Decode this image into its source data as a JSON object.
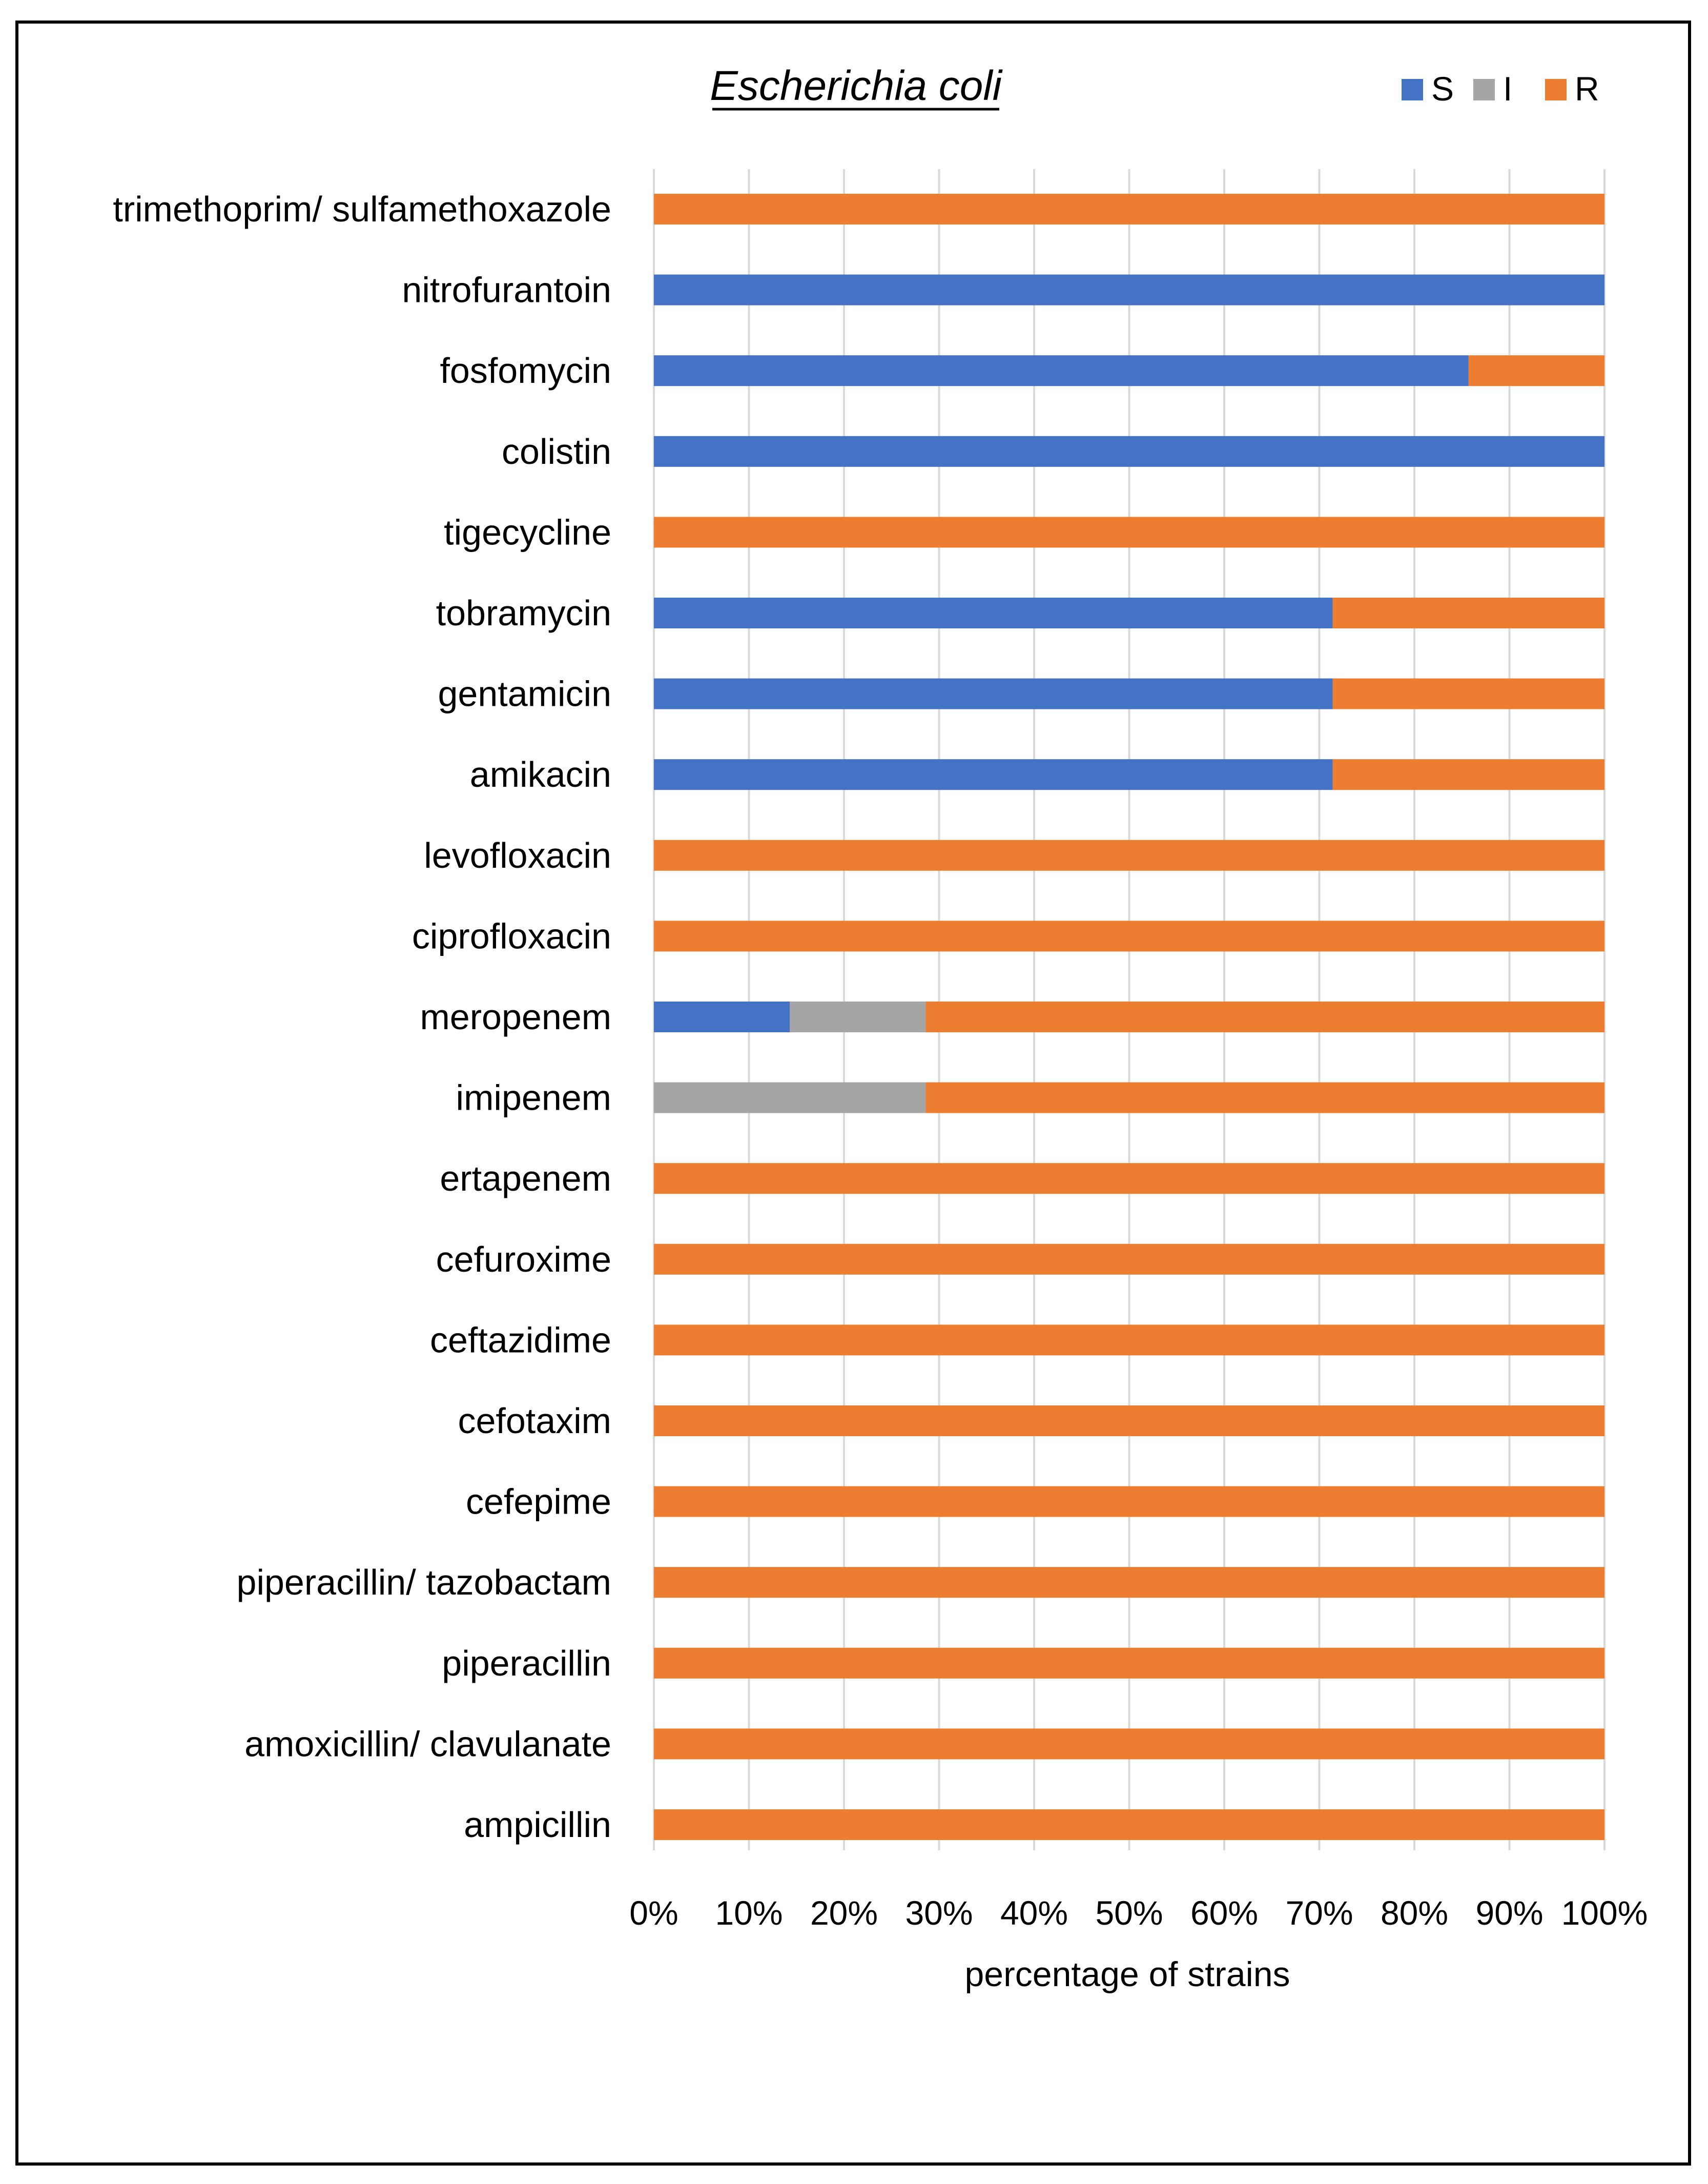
{
  "chart_data": {
    "type": "bar",
    "orientation": "horizontal",
    "stacked": true,
    "title": "Escherichia coli",
    "xlabel": "percentage of strains",
    "ylabel": "",
    "xlim": [
      0,
      100
    ],
    "xticks": [
      "0%",
      "10%",
      "20%",
      "30%",
      "40%",
      "50%",
      "60%",
      "70%",
      "80%",
      "90%",
      "100%"
    ],
    "grid": true,
    "legend_position": "top-right",
    "categories": [
      "trimethoprim/ sulfamethoxazole",
      "nitrofurantoin",
      "fosfomycin",
      "colistin",
      "tigecycline",
      "tobramycin",
      "gentamicin",
      "amikacin",
      "levofloxacin",
      "ciprofloxacin",
      "meropenem",
      "imipenem",
      "ertapenem",
      "cefuroxime",
      "ceftazidime",
      "cefotaxim",
      "cefepime",
      "piperacillin/ tazobactam",
      "piperacillin",
      "amoxicillin/ clavulanate",
      "ampicillin"
    ],
    "series": [
      {
        "name": "S",
        "color": "#4472C4",
        "values": [
          0,
          100,
          85.7,
          100,
          0,
          71.4,
          71.4,
          71.4,
          0,
          0,
          14.3,
          0,
          0,
          0,
          0,
          0,
          0,
          0,
          0,
          0,
          0
        ]
      },
      {
        "name": "I",
        "color": "#A5A5A5",
        "values": [
          0,
          0,
          0,
          0,
          0,
          0,
          0,
          0,
          0,
          0,
          14.3,
          28.6,
          0,
          0,
          0,
          0,
          0,
          0,
          0,
          0,
          0
        ]
      },
      {
        "name": "R",
        "color": "#ED7D31",
        "values": [
          100,
          0,
          14.3,
          0,
          100,
          28.6,
          28.6,
          28.6,
          100,
          100,
          71.4,
          71.4,
          100,
          100,
          100,
          100,
          100,
          100,
          100,
          100,
          100
        ]
      }
    ]
  }
}
